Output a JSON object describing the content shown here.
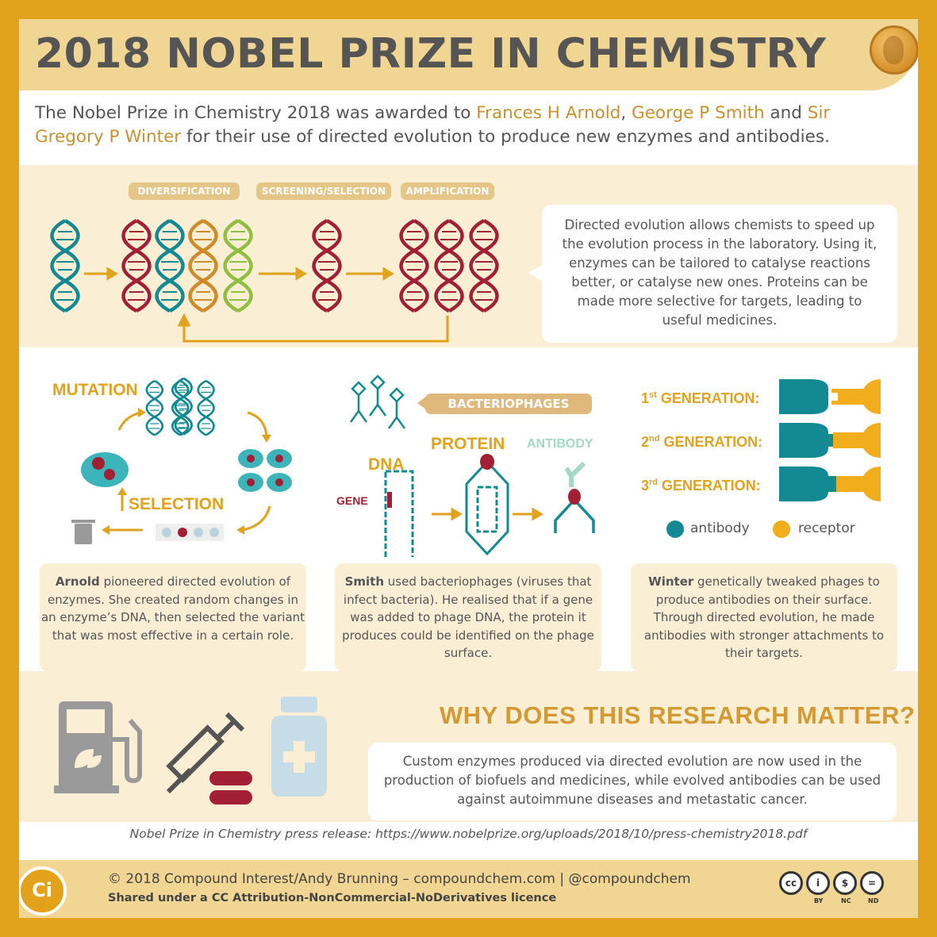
{
  "header": {
    "title": "2018 NOBEL PRIZE IN CHEMISTRY",
    "medal_icon": "nobel-medal-icon"
  },
  "intro": {
    "text_1": "The Nobel Prize in Chemistry 2018 was awarded to ",
    "laureate_1": "Frances H Arnold",
    "sep_1": ", ",
    "laureate_2": "George P Smith",
    "sep_2": " and ",
    "laureate_3": "Sir Gregory P Winter",
    "text_2": " for their use of directed evolution to produce new enzymes and antibodies."
  },
  "process": {
    "tags": [
      "DIVERSIFICATION",
      "SCREENING/SELECTION",
      "AMPLIFICATION"
    ],
    "bubble_text": "Directed evolution allows chemists to speed up the evolution process in the laboratory. Using it, enzymes can be tailored to catalyse reactions better, or catalyse new ones. Proteins can be made more selective for targets, leading to useful medicines."
  },
  "arnold": {
    "mutation_label": "MUTATION",
    "selection_label": "SELECTION",
    "card_name": "Arnold",
    "card_text": " pioneered directed evolution of enzymes. She created random changes in an enzyme’s DNA, then selected the variant that was most effective in a certain role."
  },
  "smith": {
    "phage_tag": "BACTERIOPHAGES",
    "dna_label": "DNA",
    "gene_label": "GENE",
    "protein_label": "PROTEIN",
    "antibody_label": "ANTIBODY",
    "card_name": "Smith",
    "card_text": " used bacteriophages (viruses that infect bacteria). He realised that if a gene was added to phage DNA, the protein it produces could be identified on the phage surface."
  },
  "winter": {
    "generations": [
      {
        "num": "1",
        "sup": "st",
        "label": " GENERATION:"
      },
      {
        "num": "2",
        "sup": "nd",
        "label": " GENERATION:"
      },
      {
        "num": "3",
        "sup": "rd",
        "label": " GENERATION:"
      }
    ],
    "legend": [
      {
        "label": "antibody",
        "color": "#138a93"
      },
      {
        "label": "receptor",
        "color": "#f1ad1c"
      }
    ],
    "card_name": "Winter",
    "card_text": " genetically tweaked phages to produce antibodies on their surface. Through directed evolution, he made antibodies with stronger attachments to their targets."
  },
  "matter": {
    "heading": "WHY DOES THIS RESEARCH MATTER?",
    "text": "Custom enzymes produced via directed evolution are now used in the production of biofuels and medicines, while evolved antibodies can be used against autoimmune diseases and metastatic cancer.",
    "icons": [
      "fuel-pump-icon",
      "syringe-icon",
      "pill-icon",
      "medicine-bottle-icon"
    ]
  },
  "source": "Nobel Prize in Chemistry press release: https://www.nobelprize.org/uploads/2018/10/press-chemistry2018.pdf",
  "footer": {
    "logo": "Ci",
    "line1": "© 2018 Compound Interest/Andy Brunning – compoundchem.com | @compoundchem",
    "line2": "Shared under a CC Attribution-NonCommercial-NoDerivatives licence",
    "cc_labels": [
      "BY",
      "NC",
      "ND"
    ]
  },
  "colors": {
    "gold": "#e3a21b",
    "cream": "#faeed5",
    "teal": "#138a93",
    "red": "#a31f34",
    "orange": "#cf8a2a",
    "green": "#8fbf3f",
    "grey": "#555555"
  }
}
